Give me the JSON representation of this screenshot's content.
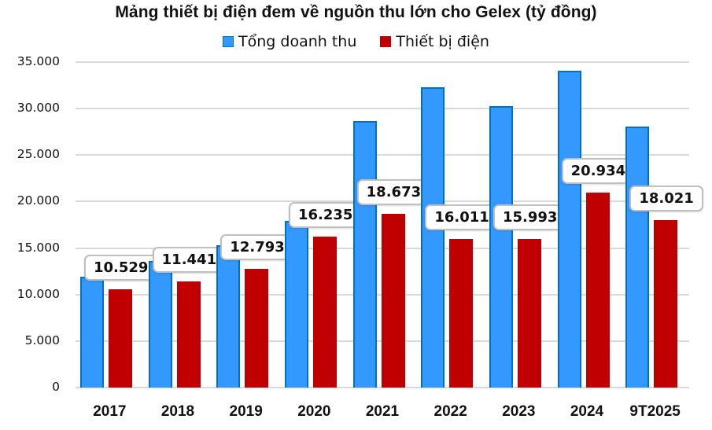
{
  "title": "Mảng thiết bị điện đem về nguồn thu lớn cho Gelex (tỷ đồng)",
  "legend": [
    {
      "label": "Tổng doanh thu",
      "color": "#3399ff"
    },
    {
      "label": "Thiết bị điện",
      "color": "#c00000"
    }
  ],
  "y_axis": {
    "ticks": [
      "35.000",
      "30.000",
      "25.000",
      "20.000",
      "15.000",
      "10.000",
      "5.000",
      "0"
    ]
  },
  "x_axis": {
    "categories": [
      "2017",
      "2018",
      "2019",
      "2020",
      "2021",
      "2022",
      "2023",
      "2024",
      "9T2025"
    ]
  },
  "data_labels": [
    "10.529",
    "11.441",
    "12.793",
    "16.235",
    "18.673",
    "16.011",
    "15.993",
    "20.934",
    "18.021"
  ],
  "chart_data": {
    "type": "bar",
    "title": "Mảng thiết bị điện đem về nguồn thu lớn cho Gelex (tỷ đồng)",
    "xlabel": "",
    "ylabel": "",
    "categories": [
      "2017",
      "2018",
      "2019",
      "2020",
      "2021",
      "2022",
      "2023",
      "2024",
      "9T2025"
    ],
    "series": [
      {
        "name": "Tổng doanh thu",
        "color": "#3399ff",
        "values": [
          11900,
          13600,
          15300,
          17900,
          28700,
          32300,
          30300,
          34100,
          28100
        ]
      },
      {
        "name": "Thiết bị điện",
        "color": "#c00000",
        "values": [
          10529,
          11441,
          12793,
          16235,
          18673,
          16011,
          15993,
          20934,
          18021
        ]
      }
    ],
    "data_labels_series": "Thiết bị điện",
    "ylim": [
      0,
      35000
    ],
    "yticks": [
      0,
      5000,
      10000,
      15000,
      20000,
      25000,
      30000,
      35000
    ],
    "grid": true,
    "legend_position": "top"
  }
}
